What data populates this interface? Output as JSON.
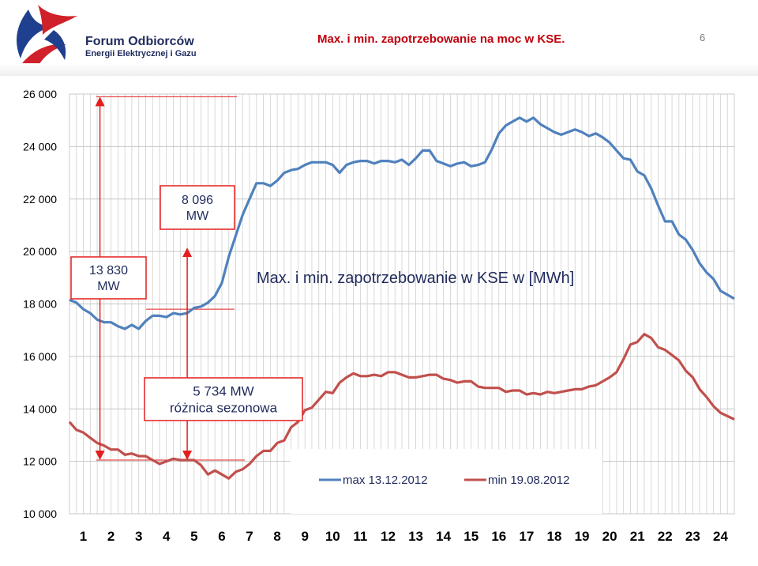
{
  "header": {
    "org_name": "Forum Odbiorców",
    "org_subtitle": "Energii Elektrycznej i Gazu",
    "slide_title": "Max. i min. zapotrzebowanie na moc w KSE.",
    "slide_number": "6"
  },
  "colors": {
    "max_series": "#4f81bd",
    "min_series": "#c0504d",
    "annotation": "#e31e1e",
    "title_red": "#c0000b"
  },
  "chart_data": {
    "type": "line",
    "title": "Max. i min. zapotrzebowanie w KSE w [MWh]",
    "xlabel": "",
    "ylabel": "",
    "x_ticks": [
      "1",
      "2",
      "3",
      "4",
      "5",
      "6",
      "7",
      "8",
      "9",
      "10",
      "11",
      "12",
      "13",
      "14",
      "15",
      "16",
      "17",
      "18",
      "19",
      "20",
      "21",
      "22",
      "23",
      "24"
    ],
    "xlim": [
      0.5,
      24.5
    ],
    "ylim": [
      10000,
      26000
    ],
    "y_ticks": [
      10000,
      12000,
      14000,
      16000,
      18000,
      20000,
      22000,
      24000,
      26000
    ],
    "y_tick_labels": [
      "10 000",
      "12 000",
      "14 000",
      "16 000",
      "18 000",
      "20 000",
      "22 000",
      "24 000",
      "26 000"
    ],
    "grid": true,
    "legend_position": "bottom-right",
    "series": [
      {
        "name": "max 13.12.2012",
        "color": "#4f81bd",
        "x": [
          0.5,
          0.75,
          1,
          1.25,
          1.5,
          1.75,
          2,
          2.25,
          2.5,
          2.75,
          3,
          3.25,
          3.5,
          3.75,
          4,
          4.25,
          4.5,
          4.75,
          5,
          5.25,
          5.5,
          5.75,
          6,
          6.25,
          6.5,
          6.75,
          7,
          7.25,
          7.5,
          7.75,
          8,
          8.25,
          8.5,
          8.75,
          9,
          9.25,
          9.5,
          9.75,
          10,
          10.25,
          10.5,
          10.75,
          11,
          11.25,
          11.5,
          11.75,
          12,
          12.25,
          12.5,
          12.75,
          13,
          13.25,
          13.5,
          13.75,
          14,
          14.25,
          14.5,
          14.75,
          15,
          15.25,
          15.5,
          15.75,
          16,
          16.25,
          16.5,
          16.75,
          17,
          17.25,
          17.5,
          17.75,
          18,
          18.25,
          18.5,
          18.75,
          19,
          19.25,
          19.5,
          19.75,
          20,
          20.25,
          20.5,
          20.75,
          21,
          21.25,
          21.5,
          21.75,
          22,
          22.25,
          22.5,
          22.75,
          23,
          23.25,
          23.5,
          23.75,
          24,
          24.5
        ],
        "values": [
          18150,
          18050,
          17800,
          17650,
          17400,
          17300,
          17300,
          17150,
          17050,
          17200,
          17050,
          17350,
          17550,
          17550,
          17500,
          17650,
          17600,
          17650,
          17850,
          17900,
          18050,
          18300,
          18800,
          19800,
          20600,
          21400,
          22000,
          22600,
          22600,
          22500,
          22700,
          23000,
          23100,
          23150,
          23300,
          23400,
          23400,
          23400,
          23300,
          23000,
          23300,
          23400,
          23450,
          23450,
          23350,
          23450,
          23450,
          23400,
          23500,
          23300,
          23550,
          23850,
          23850,
          23450,
          23350,
          23250,
          23350,
          23400,
          23250,
          23300,
          23400,
          23900,
          24500,
          24800,
          24950,
          25100,
          24950,
          25100,
          24850,
          24700,
          24550,
          24450,
          24550,
          24650,
          24550,
          24400,
          24500,
          24350,
          24150,
          23850,
          23550,
          23500,
          23050,
          22900,
          22400,
          21750,
          21150,
          21150,
          20650,
          20450,
          20050,
          19550,
          19200,
          18950,
          18500,
          18200
        ]
      },
      {
        "name": "min 19.08.2012",
        "color": "#c0504d",
        "x": [
          0.5,
          0.75,
          1,
          1.25,
          1.5,
          1.75,
          2,
          2.25,
          2.5,
          2.75,
          3,
          3.25,
          3.5,
          3.75,
          4,
          4.25,
          4.5,
          4.75,
          5,
          5.25,
          5.5,
          5.75,
          6,
          6.25,
          6.5,
          6.75,
          7,
          7.25,
          7.5,
          7.75,
          8,
          8.25,
          8.5,
          8.75,
          9,
          9.25,
          9.5,
          9.75,
          10,
          10.25,
          10.5,
          10.75,
          11,
          11.25,
          11.5,
          11.75,
          12,
          12.25,
          12.5,
          12.75,
          13,
          13.25,
          13.5,
          13.75,
          14,
          14.25,
          14.5,
          14.75,
          15,
          15.25,
          15.5,
          15.75,
          16,
          16.25,
          16.5,
          16.75,
          17,
          17.25,
          17.5,
          17.75,
          18,
          18.25,
          18.5,
          18.75,
          19,
          19.25,
          19.5,
          19.75,
          20,
          20.25,
          20.5,
          20.75,
          21,
          21.25,
          21.5,
          21.75,
          22,
          22.25,
          22.5,
          22.75,
          23,
          23.25,
          23.5,
          23.75,
          24,
          24.5
        ],
        "values": [
          13500,
          13200,
          13100,
          12900,
          12700,
          12600,
          12450,
          12450,
          12250,
          12300,
          12200,
          12200,
          12050,
          11900,
          12000,
          12100,
          12050,
          12050,
          12050,
          11850,
          11500,
          11650,
          11500,
          11350,
          11600,
          11700,
          11900,
          12200,
          12400,
          12400,
          12700,
          12800,
          13300,
          13500,
          13950,
          14050,
          14350,
          14650,
          14600,
          15000,
          15200,
          15350,
          15250,
          15250,
          15300,
          15250,
          15400,
          15400,
          15300,
          15200,
          15200,
          15250,
          15300,
          15300,
          15150,
          15100,
          15000,
          15050,
          15050,
          14850,
          14800,
          14800,
          14800,
          14650,
          14700,
          14700,
          14550,
          14600,
          14550,
          14650,
          14600,
          14650,
          14700,
          14750,
          14750,
          14850,
          14900,
          15050,
          15200,
          15400,
          15900,
          16450,
          16550,
          16850,
          16700,
          16350,
          16250,
          16050,
          15850,
          15450,
          15200,
          14750,
          14450,
          14100,
          13850,
          13600
        ]
      }
    ],
    "annotations": [
      {
        "text": "13 830\nMW",
        "hour": 1.6,
        "from": 12050,
        "to": 25900
      },
      {
        "text": "8 096\nMW",
        "hour": 4.75,
        "from": 12050,
        "to": 20150
      },
      {
        "text": "5 734 MW\nróżnica sezonowa",
        "hour": 4.75,
        "from": 12050,
        "to": 17800
      }
    ]
  }
}
